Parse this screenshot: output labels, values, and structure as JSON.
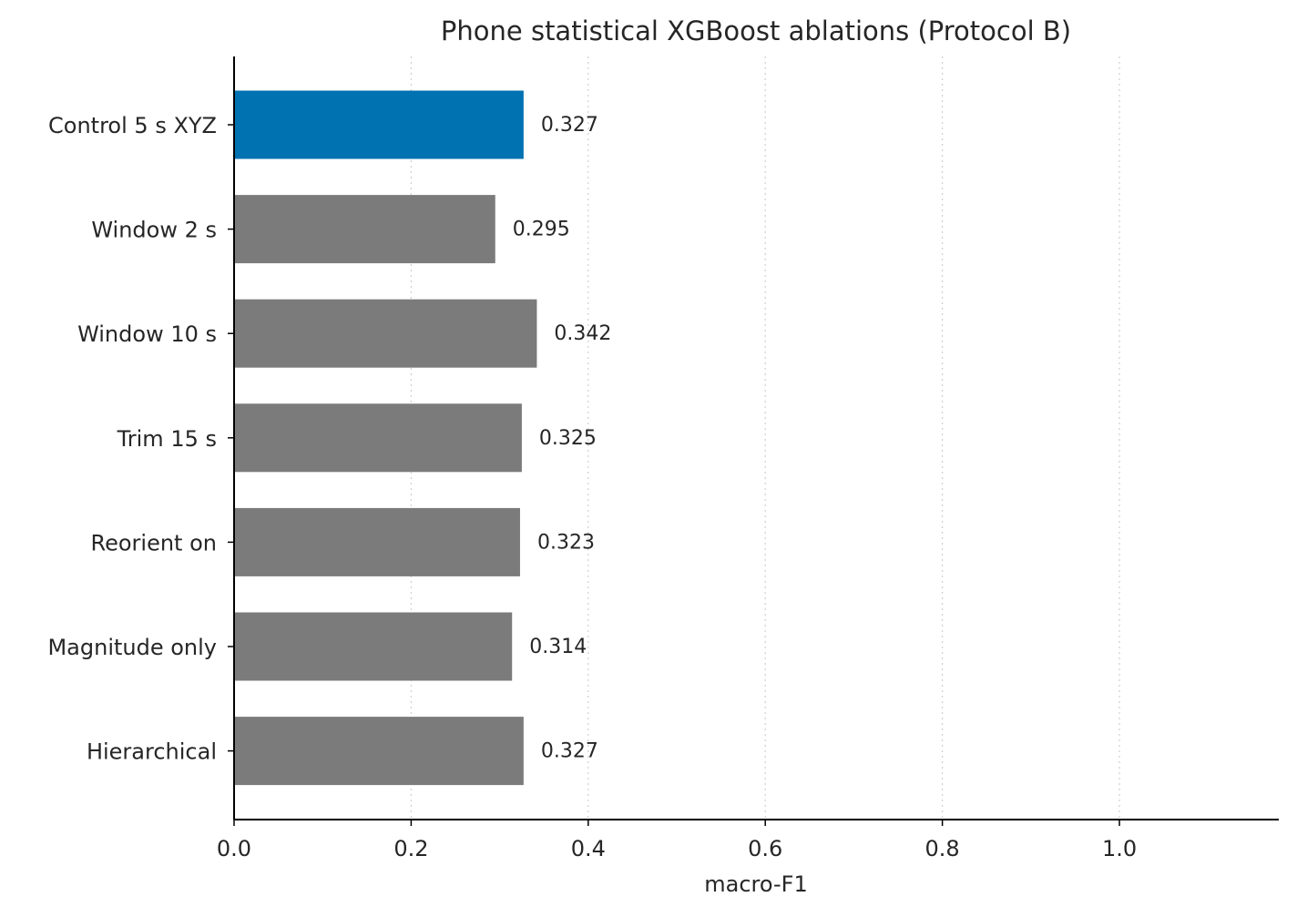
{
  "chart_data": {
    "type": "bar",
    "orientation": "horizontal",
    "title": "Phone statistical XGBoost ablations (Protocol B)",
    "xlabel": "macro-F1",
    "ylabel": "",
    "xlim": [
      0.0,
      1.18
    ],
    "xticks": [
      0.0,
      0.2,
      0.4,
      0.6,
      0.8,
      1.0
    ],
    "xtick_labels": [
      "0.0",
      "0.2",
      "0.4",
      "0.6",
      "0.8",
      "1.0"
    ],
    "grid": "x-dotted",
    "categories": [
      "Control 5 s XYZ",
      "Window 2 s",
      "Window 10 s",
      "Trim 15 s",
      "Reorient on",
      "Magnitude only",
      "Hierarchical"
    ],
    "values": [
      0.327,
      0.295,
      0.342,
      0.325,
      0.323,
      0.314,
      0.327
    ],
    "value_labels": [
      "0.327",
      "0.295",
      "0.342",
      "0.325",
      "0.323",
      "0.314",
      "0.327"
    ],
    "bar_colors": [
      "#0072b2",
      "#7b7b7b",
      "#7b7b7b",
      "#7b7b7b",
      "#7b7b7b",
      "#7b7b7b",
      "#7b7b7b"
    ]
  }
}
